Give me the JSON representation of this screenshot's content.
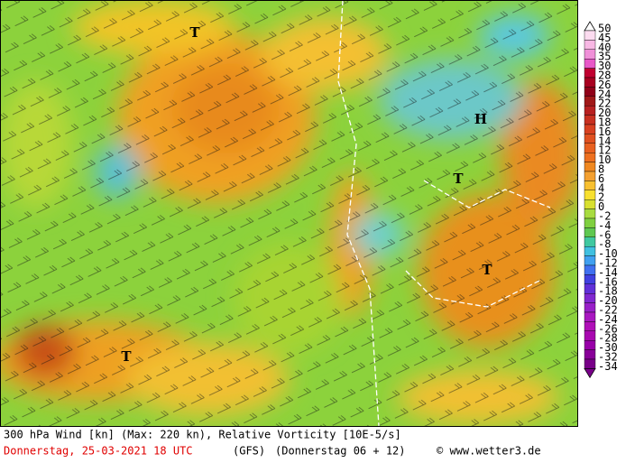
{
  "map": {
    "labels": [
      {
        "text": "T"
      },
      {
        "text": "H"
      },
      {
        "text": "T"
      },
      {
        "text": "T"
      },
      {
        "text": "T"
      }
    ],
    "legend": [
      "50",
      "45",
      "40",
      "35",
      "30",
      "28",
      "26",
      "24",
      "22",
      "20",
      "18",
      "16",
      "14",
      "12",
      "10",
      "8",
      "6",
      "4",
      "2",
      "0",
      "-2",
      "-4",
      "-6",
      "-8",
      "-10",
      "-12",
      "-14",
      "-16",
      "-18",
      "-20",
      "-22",
      "-24",
      "-26",
      "-28",
      "-30",
      "-32",
      "-34"
    ]
  },
  "footer": {
    "title": "300 hPa Wind [kn] (Max: 220 kn), Relative Vorticity [10E-5/s]",
    "date": "Donnerstag, 25-03-2021  18 UTC",
    "model": "(GFS)",
    "run": "(Donnerstag 06 + 12)",
    "copyright": "© www.wetter3.de"
  }
}
